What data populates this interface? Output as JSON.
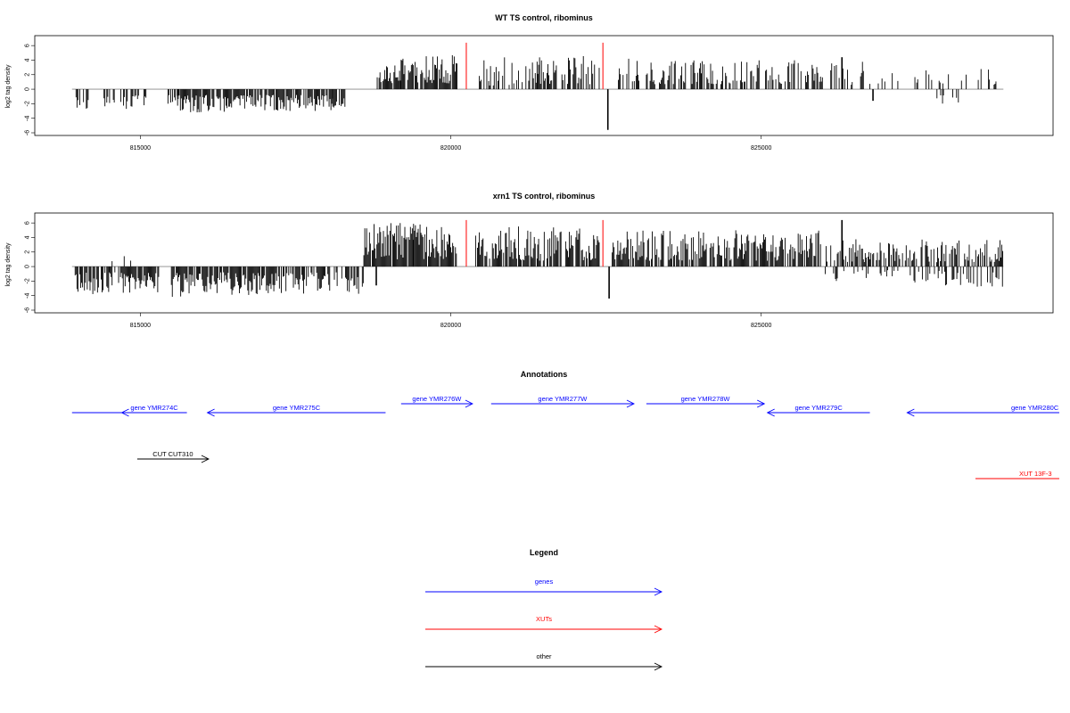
{
  "chart_data": [
    {
      "type": "bar",
      "title": "WT TS control, ribominus",
      "ylabel": "log2 tag density",
      "xlabel": "",
      "xlim": [
        813300,
        829700
      ],
      "ylim": [
        -6,
        7
      ],
      "x_ticks": [
        815000,
        820000,
        825000
      ],
      "x_tick_labels": [
        "815000",
        "820000",
        "825000"
      ],
      "y_ticks": [
        -6,
        -4,
        -2,
        0,
        2,
        4,
        6
      ],
      "y_tick_labels": [
        "-6",
        "-4",
        "-2",
        "0",
        "2",
        "4",
        "6"
      ],
      "baseline_range": [
        813900,
        828900
      ],
      "marker_color": "#ff0000",
      "markers": [
        {
          "x": 820250,
          "y": 6.4
        },
        {
          "x": 822450,
          "y": 6.4
        }
      ],
      "bar_color": "#000000",
      "segments": [
        {
          "from": 813950,
          "to": 814200,
          "sign": -1,
          "min": 1.0,
          "max": 3.2,
          "density": 0.35,
          "seed": 11
        },
        {
          "from": 814400,
          "to": 815100,
          "sign": -1,
          "min": 0.8,
          "max": 2.8,
          "density": 0.55,
          "seed": 12
        },
        {
          "from": 815400,
          "to": 815700,
          "sign": -1,
          "min": 0.8,
          "max": 2.2,
          "density": 0.35,
          "seed": 13
        },
        {
          "from": 815600,
          "to": 816900,
          "sign": -1,
          "min": 0.8,
          "max": 3.2,
          "density": 0.85,
          "seed": 14
        },
        {
          "from": 816900,
          "to": 818100,
          "sign": -1,
          "min": 0.8,
          "max": 3.0,
          "density": 0.8,
          "seed": 15
        },
        {
          "from": 818100,
          "to": 818300,
          "sign": -1,
          "min": 1.0,
          "max": 2.6,
          "density": 0.8,
          "seed": 16
        },
        {
          "from": 818800,
          "to": 819200,
          "sign": 1,
          "min": 0.8,
          "max": 3.6,
          "density": 0.9,
          "seed": 17
        },
        {
          "from": 819200,
          "to": 820100,
          "sign": 1,
          "min": 0.8,
          "max": 4.7,
          "density": 0.9,
          "seed": 18
        },
        {
          "from": 820400,
          "to": 821400,
          "sign": 1,
          "min": 0.5,
          "max": 4.5,
          "density": 0.45,
          "seed": 19
        },
        {
          "from": 821400,
          "to": 822400,
          "sign": 1,
          "min": 0.7,
          "max": 4.6,
          "density": 0.6,
          "seed": 20
        },
        {
          "from": 822700,
          "to": 824200,
          "sign": 1,
          "min": 0.7,
          "max": 4.2,
          "density": 0.55,
          "seed": 21
        },
        {
          "from": 824200,
          "to": 826000,
          "sign": 1,
          "min": 0.7,
          "max": 4.0,
          "density": 0.5,
          "seed": 22
        },
        {
          "from": 826000,
          "to": 827200,
          "sign": 1,
          "min": 0.6,
          "max": 4.3,
          "density": 0.35,
          "seed": 23
        },
        {
          "from": 827400,
          "to": 828800,
          "sign": 1,
          "min": 0.6,
          "max": 3.0,
          "density": 0.2,
          "seed": 24
        },
        {
          "from": 827800,
          "to": 828200,
          "sign": -1,
          "min": 0.8,
          "max": 2.0,
          "density": 0.25,
          "seed": 25
        }
      ],
      "spikes": [
        {
          "x": 822530,
          "y": -5.6
        },
        {
          "x": 826300,
          "y": 4.4
        },
        {
          "x": 826800,
          "y": -1.6
        }
      ]
    },
    {
      "type": "bar",
      "title": "xrn1 TS control, ribominus",
      "ylabel": "log2 tag density",
      "xlabel": "",
      "xlim": [
        813300,
        829700
      ],
      "ylim": [
        -6,
        7
      ],
      "x_ticks": [
        815000,
        820000,
        825000
      ],
      "x_tick_labels": [
        "815000",
        "820000",
        "825000"
      ],
      "y_ticks": [
        -6,
        -4,
        -2,
        0,
        2,
        4,
        6
      ],
      "y_tick_labels": [
        "-6",
        "-4",
        "-2",
        "0",
        "2",
        "4",
        "6"
      ],
      "baseline_range": [
        813900,
        828900
      ],
      "marker_color": "#ff0000",
      "markers": [
        {
          "x": 820250,
          "y": 6.4
        },
        {
          "x": 822450,
          "y": 6.4
        }
      ],
      "bar_color": "#000000",
      "segments": [
        {
          "from": 813950,
          "to": 814500,
          "sign": -1,
          "min": 0.8,
          "max": 4.0,
          "density": 0.7,
          "seed": 31
        },
        {
          "from": 814500,
          "to": 815300,
          "sign": -1,
          "min": 0.8,
          "max": 3.8,
          "density": 0.8,
          "seed": 32
        },
        {
          "from": 814500,
          "to": 815000,
          "sign": 1,
          "min": 0.6,
          "max": 2.2,
          "density": 0.15,
          "seed": 33
        },
        {
          "from": 815500,
          "to": 817300,
          "sign": -1,
          "min": 0.8,
          "max": 4.2,
          "density": 0.85,
          "seed": 34
        },
        {
          "from": 817300,
          "to": 818600,
          "sign": -1,
          "min": 0.8,
          "max": 3.8,
          "density": 0.7,
          "seed": 35
        },
        {
          "from": 818600,
          "to": 819400,
          "sign": 1,
          "min": 1.0,
          "max": 6.0,
          "density": 0.95,
          "seed": 36
        },
        {
          "from": 819400,
          "to": 820100,
          "sign": 1,
          "min": 1.0,
          "max": 6.0,
          "density": 0.95,
          "seed": 37
        },
        {
          "from": 820400,
          "to": 821400,
          "sign": 1,
          "min": 0.8,
          "max": 5.6,
          "density": 0.8,
          "seed": 38
        },
        {
          "from": 821400,
          "to": 822400,
          "sign": 1,
          "min": 0.8,
          "max": 5.4,
          "density": 0.8,
          "seed": 39
        },
        {
          "from": 822600,
          "to": 824200,
          "sign": 1,
          "min": 0.8,
          "max": 5.0,
          "density": 0.8,
          "seed": 40
        },
        {
          "from": 824200,
          "to": 826000,
          "sign": 1,
          "min": 0.8,
          "max": 5.0,
          "density": 0.75,
          "seed": 41
        },
        {
          "from": 826000,
          "to": 827600,
          "sign": 1,
          "min": 0.6,
          "max": 4.0,
          "density": 0.65,
          "seed": 42
        },
        {
          "from": 827600,
          "to": 828900,
          "sign": 1,
          "min": 0.6,
          "max": 3.8,
          "density": 0.55,
          "seed": 43
        },
        {
          "from": 826000,
          "to": 827200,
          "sign": -1,
          "min": 0.5,
          "max": 2.0,
          "density": 0.2,
          "seed": 44
        },
        {
          "from": 827400,
          "to": 828900,
          "sign": -1,
          "min": 0.6,
          "max": 3.0,
          "density": 0.35,
          "seed": 45
        }
      ],
      "spikes": [
        {
          "x": 822550,
          "y": -4.4
        },
        {
          "x": 826300,
          "y": 6.4
        },
        {
          "x": 818800,
          "y": -2.6
        },
        {
          "x": 823300,
          "y": 0
        }
      ]
    }
  ],
  "annotations": {
    "title": "Annotations",
    "color_genes": "#0000ff",
    "color_xuts": "#ff0000",
    "color_other": "#000000",
    "items": [
      {
        "label": "",
        "x_from": 813900,
        "x_to": 814700,
        "direction": "left",
        "color": "#0000ff",
        "row": 1,
        "arrowhead": false
      },
      {
        "label": "gene YMR274C",
        "x_from": 814700,
        "x_to": 815750,
        "direction": "left",
        "color": "#0000ff",
        "row": 1,
        "arrowhead": true
      },
      {
        "label": "gene YMR275C",
        "x_from": 816080,
        "x_to": 818950,
        "direction": "left",
        "color": "#0000ff",
        "row": 1,
        "arrowhead": true
      },
      {
        "label": "gene YMR276W",
        "x_from": 819200,
        "x_to": 820350,
        "direction": "right",
        "color": "#0000ff",
        "row": 0,
        "arrowhead": true
      },
      {
        "label": "gene YMR277W",
        "x_from": 820650,
        "x_to": 822950,
        "direction": "right",
        "color": "#0000ff",
        "row": 0,
        "arrowhead": true
      },
      {
        "label": "gene YMR278W",
        "x_from": 823150,
        "x_to": 825050,
        "direction": "right",
        "color": "#0000ff",
        "row": 0,
        "arrowhead": true
      },
      {
        "label": "gene YMR279C",
        "x_from": 825100,
        "x_to": 826750,
        "direction": "left",
        "color": "#0000ff",
        "row": 1,
        "arrowhead": true
      },
      {
        "label": "gene YMR280C",
        "x_from": 827350,
        "x_to": 829800,
        "direction": "left",
        "color": "#0000ff",
        "row": 1,
        "arrowhead": true
      },
      {
        "label": "CUT CUT310",
        "x_from": 814950,
        "x_to": 816100,
        "direction": "right",
        "color": "#000000",
        "row": 2,
        "arrowhead": true
      },
      {
        "label": "XUT 13F-3",
        "x_from": 828450,
        "x_to": 829800,
        "direction": "none",
        "color": "#ff0000",
        "row": 3,
        "arrowhead": false
      }
    ]
  },
  "legend": {
    "title": "Legend",
    "entries": [
      {
        "label": "genes",
        "color": "#0000ff"
      },
      {
        "label": "XUTs",
        "color": "#ff0000"
      },
      {
        "label": "other",
        "color": "#000000"
      }
    ]
  }
}
